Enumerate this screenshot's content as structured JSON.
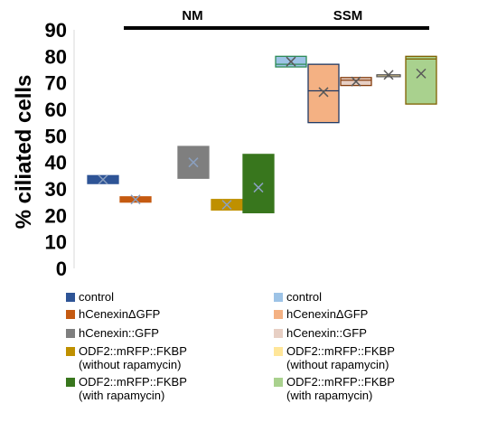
{
  "chart_data": {
    "type": "box",
    "ylabel": "% ciliated cells",
    "ylim": [
      0,
      90
    ],
    "yticks": [
      0,
      10,
      20,
      30,
      40,
      50,
      60,
      70,
      80,
      90
    ],
    "grid": false,
    "legend_placement": "bottom",
    "groups": [
      {
        "label": "NM",
        "series": [
          {
            "name": "control",
            "color": "#2e5496",
            "min": 32,
            "q1": 32,
            "median": 33.5,
            "q3": 35,
            "max": 35,
            "mean": 33.5
          },
          {
            "name": "hCenexinΔGFP",
            "color": "#c55a11",
            "min": 25,
            "q1": 25,
            "median": 26,
            "q3": 27,
            "max": 27,
            "mean": 26
          },
          {
            "name": "hCenexin::GFP",
            "color": "#7f7f7f",
            "min": 34,
            "q1": 34,
            "median": 40,
            "q3": 46,
            "max": 46,
            "mean": 40
          },
          {
            "name": "ODF2::mRFP::FKBP (without rapamycin)",
            "color": "#bf9000",
            "min": 22,
            "q1": 22,
            "median": 24,
            "q3": 26,
            "max": 26,
            "mean": 24
          },
          {
            "name": "ODF2::mRFP::FKBP (with rapamycin)",
            "color": "#38761d",
            "min": 21,
            "q1": 21,
            "median": 31,
            "q3": 43,
            "max": 43,
            "mean": 30.5
          }
        ]
      },
      {
        "label": "SSM",
        "series": [
          {
            "name": "control",
            "color": "#9dc3e6",
            "border": "#2e8b57",
            "min": 76,
            "q1": 76,
            "median": 77,
            "q3": 80,
            "max": 80,
            "mean": 78
          },
          {
            "name": "hCenexinΔGFP",
            "color": "#f4b183",
            "border": "#1f3864",
            "min": 55,
            "q1": 55,
            "median": 67,
            "q3": 77,
            "max": 77,
            "mean": 66.5
          },
          {
            "name": "hCenexin::GFP",
            "color": "#e7cfc4",
            "border": "#843c0c",
            "min": 69,
            "q1": 69,
            "median": 71,
            "q3": 72,
            "max": 72,
            "mean": 70.5
          },
          {
            "name": "ODF2::mRFP::FKBP (without rapamycin)",
            "color": "#ffe699",
            "border": "#595959",
            "min": 73,
            "q1": 73,
            "median": 73,
            "q3": 73,
            "max": 73,
            "mean": 73
          },
          {
            "name": "ODF2::mRFP::FKBP (with rapamycin)",
            "color": "#a9d18e",
            "border": "#7f6000",
            "min": 62,
            "q1": 62,
            "median": 79,
            "q3": 80,
            "max": 80,
            "mean": 73.5
          }
        ]
      }
    ]
  },
  "legend": {
    "nm": [
      {
        "lines": [
          "control"
        ],
        "color": "#2e5496"
      },
      {
        "lines": [
          "hCenexinΔGFP"
        ],
        "color": "#c55a11"
      },
      {
        "lines": [
          "hCenexin::GFP"
        ],
        "color": "#7f7f7f"
      },
      {
        "lines": [
          "ODF2::mRFP::FKBP",
          "(without rapamycin)"
        ],
        "color": "#bf9000"
      },
      {
        "lines": [
          "ODF2::mRFP::FKBP",
          "(with rapamycin)"
        ],
        "color": "#38761d"
      }
    ],
    "ssm": [
      {
        "lines": [
          "control"
        ],
        "color": "#9dc3e6"
      },
      {
        "lines": [
          "hCenexinΔGFP"
        ],
        "color": "#f4b183"
      },
      {
        "lines": [
          "hCenexin::GFP"
        ],
        "color": "#e7cfc4"
      },
      {
        "lines": [
          "ODF2::mRFP::FKBP",
          "(without rapamycin)"
        ],
        "color": "#ffe699"
      },
      {
        "lines": [
          "ODF2::mRFP::FKBP",
          "(with rapamycin)"
        ],
        "color": "#a9d18e"
      }
    ]
  }
}
